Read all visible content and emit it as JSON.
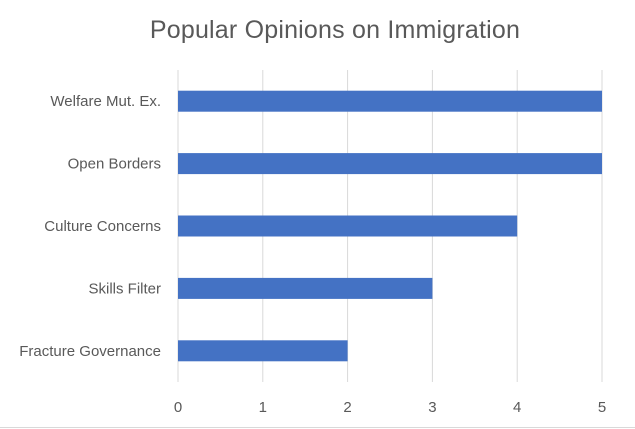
{
  "chart_data": {
    "type": "bar",
    "orientation": "horizontal",
    "title": "Popular Opinions on Immigration",
    "categories": [
      "Welfare Mut. Ex.",
      "Open Borders",
      "Culture Concerns",
      "Skills Filter",
      "Fracture Governance"
    ],
    "values": [
      5,
      5,
      4,
      3,
      2
    ],
    "xlim": [
      0,
      5
    ],
    "xticks": [
      "0",
      "1",
      "2",
      "3",
      "4",
      "5"
    ],
    "xlabel": "",
    "ylabel": "",
    "grid": "vertical",
    "legend": "none",
    "bar_color": "#4472C4",
    "grid_color": "#D9D9D9",
    "text_color": "#595959"
  }
}
